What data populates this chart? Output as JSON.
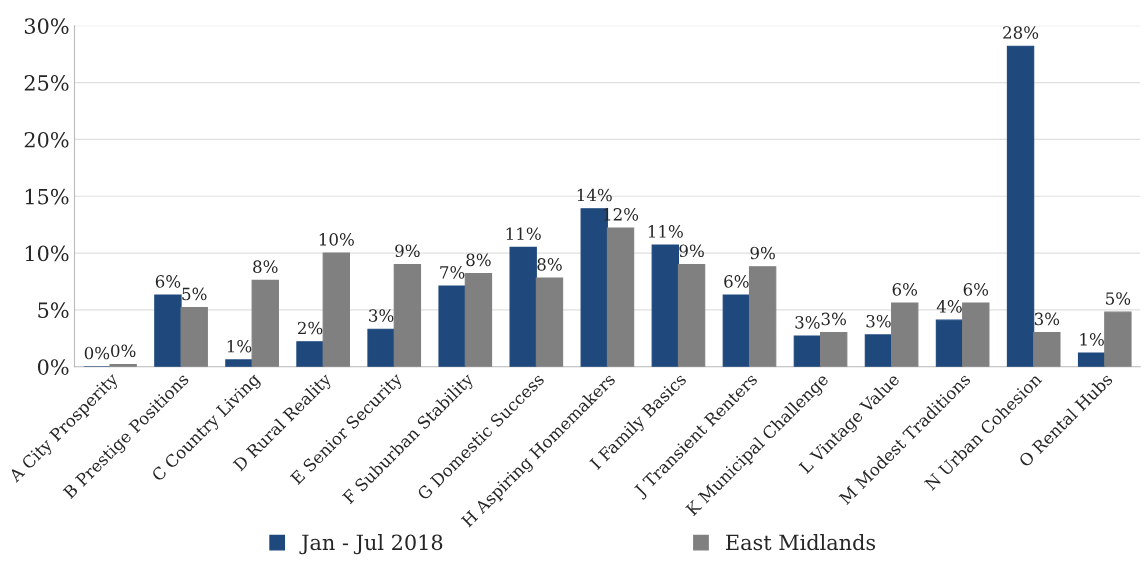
{
  "chart_data": {
    "type": "bar",
    "categories": [
      "A City Prosperity",
      "B Prestige Positions",
      "C Country Living",
      "D Rural Reality",
      "E Senior Security",
      "F Suburban Stability",
      "G Domestic Success",
      "H Aspiring Homemakers",
      "I Family Basics",
      "J Transient Renters",
      "K Municipal Challenge",
      "L Vintage Value",
      "M Modest Traditions",
      "N Urban Cohesion",
      "O Rental Hubs"
    ],
    "series": [
      {
        "name": "Jan - Jul 2018",
        "color": "#1f497d",
        "values": [
          0,
          6.3,
          0.6,
          2.2,
          3.3,
          7.1,
          10.5,
          13.9,
          10.7,
          6.3,
          2.7,
          2.8,
          4.1,
          28.2,
          1.2
        ],
        "value_labels": [
          "0%",
          "6%",
          "1%",
          "2%",
          "3%",
          "7%",
          "11%",
          "14%",
          "11%",
          "6%",
          "3%",
          "3%",
          "4%",
          "28%",
          "1%"
        ]
      },
      {
        "name": "East Midlands",
        "color": "#808080",
        "values": [
          0.2,
          5.2,
          7.6,
          10.0,
          9.0,
          8.2,
          7.8,
          12.2,
          9.0,
          8.8,
          3.0,
          5.6,
          5.6,
          3.0,
          4.8
        ],
        "value_labels": [
          "0%",
          "5%",
          "8%",
          "10%",
          "9%",
          "8%",
          "8%",
          "12%",
          "9%",
          "9%",
          "3%",
          "6%",
          "6%",
          "3%",
          "5%"
        ]
      }
    ],
    "ylim": [
      0,
      30
    ],
    "yticks": [
      {
        "value": 0,
        "label": "0%"
      },
      {
        "value": 5,
        "label": "5%"
      },
      {
        "value": 10,
        "label": "10%"
      },
      {
        "value": 15,
        "label": "15%"
      },
      {
        "value": 20,
        "label": "20%"
      },
      {
        "value": 25,
        "label": "25%"
      },
      {
        "value": 30,
        "label": "30%"
      }
    ],
    "grid": "y",
    "legend": "bottom"
  }
}
